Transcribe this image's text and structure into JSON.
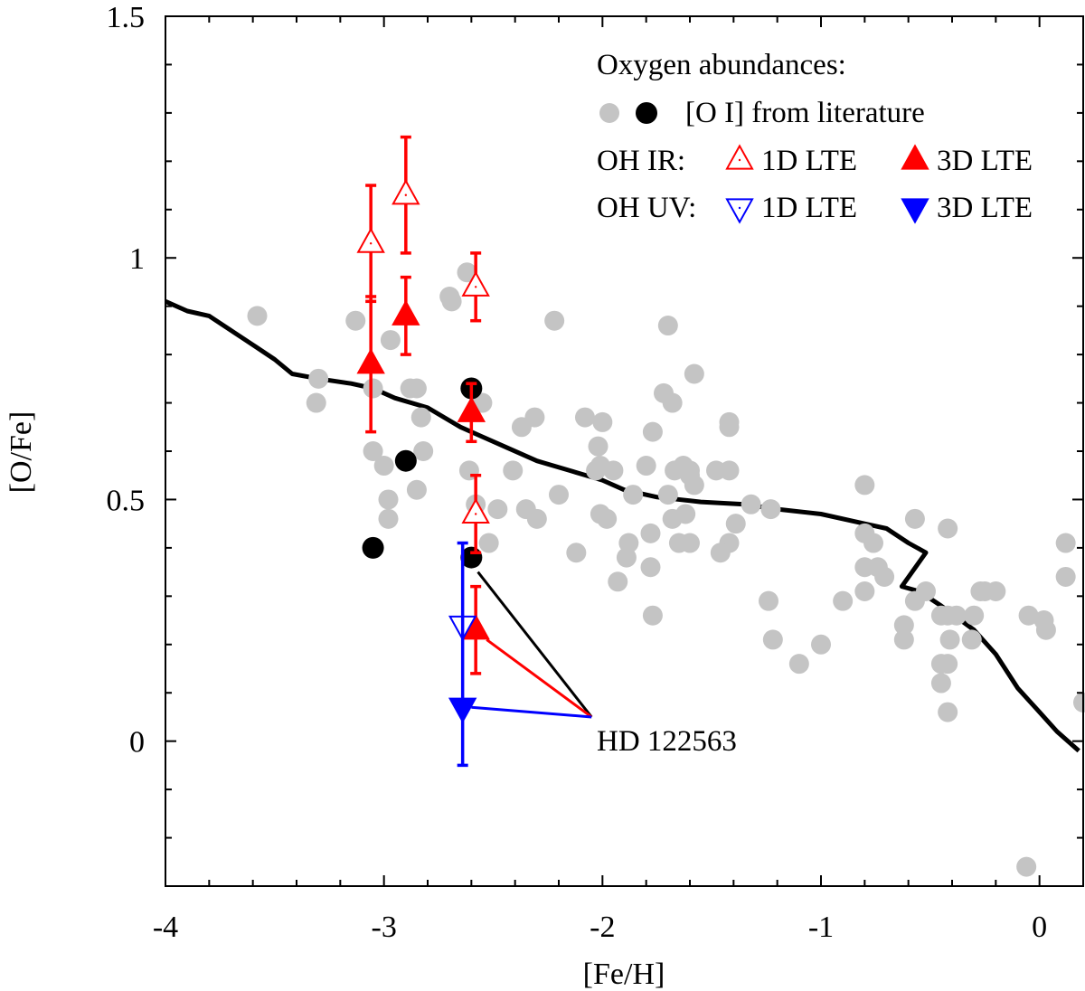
{
  "chart_data": {
    "type": "scatter",
    "xlabel": "[Fe/H]",
    "ylabel": "[O/Fe]",
    "xlim": [
      -4,
      0.2
    ],
    "ylim": [
      -0.3,
      1.5
    ],
    "xticks": [
      -4,
      -3,
      -2,
      -1,
      0
    ],
    "xtick_labels": [
      "-4",
      "-3",
      "-2",
      "-1",
      "0"
    ],
    "yticks": [
      0,
      0.5,
      1,
      1.5
    ],
    "ytick_labels": [
      "0",
      "0.5",
      "1",
      "1.5"
    ],
    "grid": false,
    "colors": {
      "literature_gray": "#c4c4c4",
      "literature_black": "#000000",
      "oh_ir": "#ff0000",
      "oh_uv": "#0000ff",
      "model": "#000000"
    },
    "legend": {
      "placement": "top-right",
      "title": "Oxygen abundances:",
      "oi_label": "[O I] from literature",
      "oh_ir_label": "OH IR:",
      "oh_uv_label": "OH UV:",
      "ir_1d_label": "1D LTE",
      "ir_3d_label": "3D LTE",
      "uv_1d_label": "1D LTE",
      "uv_3d_label": "3D LTE"
    },
    "annotation": {
      "text": "HD 122563",
      "point_at": [
        -2.05,
        0.05
      ]
    },
    "model_curve": [
      [
        -4.0,
        0.91
      ],
      [
        -3.9,
        0.89
      ],
      [
        -3.8,
        0.88
      ],
      [
        -3.7,
        0.85
      ],
      [
        -3.6,
        0.82
      ],
      [
        -3.5,
        0.79
      ],
      [
        -3.42,
        0.76
      ],
      [
        -3.3,
        0.75
      ],
      [
        -3.15,
        0.74
      ],
      [
        -3.05,
        0.73
      ],
      [
        -2.95,
        0.71
      ],
      [
        -2.8,
        0.69
      ],
      [
        -2.65,
        0.65
      ],
      [
        -2.55,
        0.63
      ],
      [
        -2.45,
        0.61
      ],
      [
        -2.3,
        0.58
      ],
      [
        -2.15,
        0.56
      ],
      [
        -2.0,
        0.54
      ],
      [
        -1.9,
        0.52
      ],
      [
        -1.75,
        0.505
      ],
      [
        -1.55,
        0.495
      ],
      [
        -1.35,
        0.49
      ],
      [
        -1.2,
        0.48
      ],
      [
        -1.0,
        0.47
      ],
      [
        -0.8,
        0.45
      ],
      [
        -0.7,
        0.44
      ],
      [
        -0.6,
        0.41
      ],
      [
        -0.52,
        0.39
      ],
      [
        -0.63,
        0.32
      ],
      [
        -0.55,
        0.31
      ],
      [
        -0.45,
        0.28
      ],
      [
        -0.3,
        0.23
      ],
      [
        -0.2,
        0.18
      ],
      [
        -0.1,
        0.11
      ],
      [
        0.0,
        0.06
      ],
      [
        0.08,
        0.02
      ],
      [
        0.18,
        -0.02
      ]
    ],
    "gray_points": [
      [
        -3.58,
        0.88
      ],
      [
        -3.3,
        0.75
      ],
      [
        -3.31,
        0.7
      ],
      [
        -3.13,
        0.87
      ],
      [
        -3.05,
        0.73
      ],
      [
        -3.05,
        0.6
      ],
      [
        -3.0,
        0.57
      ],
      [
        -2.98,
        0.5
      ],
      [
        -2.98,
        0.46
      ],
      [
        -2.97,
        0.83
      ],
      [
        -2.88,
        0.73
      ],
      [
        -2.85,
        0.73
      ],
      [
        -2.83,
        0.67
      ],
      [
        -2.82,
        0.6
      ],
      [
        -2.85,
        0.52
      ],
      [
        -2.7,
        0.92
      ],
      [
        -2.69,
        0.91
      ],
      [
        -2.62,
        0.97
      ],
      [
        -2.61,
        0.56
      ],
      [
        -2.58,
        0.49
      ],
      [
        -2.55,
        0.7
      ],
      [
        -2.52,
        0.41
      ],
      [
        -2.48,
        0.48
      ],
      [
        -2.41,
        0.56
      ],
      [
        -2.37,
        0.65
      ],
      [
        -2.35,
        0.48
      ],
      [
        -2.31,
        0.67
      ],
      [
        -2.3,
        0.46
      ],
      [
        -2.22,
        0.87
      ],
      [
        -2.2,
        0.51
      ],
      [
        -2.12,
        0.39
      ],
      [
        -2.08,
        0.67
      ],
      [
        -2.03,
        0.56
      ],
      [
        -2.01,
        0.47
      ],
      [
        -2.02,
        0.61
      ],
      [
        -2.0,
        0.66
      ],
      [
        -2.01,
        0.57
      ],
      [
        -1.98,
        0.46
      ],
      [
        -1.95,
        0.56
      ],
      [
        -1.93,
        0.33
      ],
      [
        -1.88,
        0.41
      ],
      [
        -1.89,
        0.38
      ],
      [
        -1.86,
        0.51
      ],
      [
        -1.8,
        0.57
      ],
      [
        -1.78,
        0.43
      ],
      [
        -1.78,
        0.36
      ],
      [
        -1.77,
        0.26
      ],
      [
        -1.77,
        0.64
      ],
      [
        -1.72,
        0.72
      ],
      [
        -1.68,
        0.7
      ],
      [
        -1.7,
        0.86
      ],
      [
        -1.7,
        0.51
      ],
      [
        -1.68,
        0.46
      ],
      [
        -1.67,
        0.56
      ],
      [
        -1.65,
        0.41
      ],
      [
        -1.63,
        0.57
      ],
      [
        -1.62,
        0.47
      ],
      [
        -1.6,
        0.56
      ],
      [
        -1.6,
        0.55
      ],
      [
        -1.6,
        0.41
      ],
      [
        -1.58,
        0.53
      ],
      [
        -1.58,
        0.76
      ],
      [
        -1.48,
        0.56
      ],
      [
        -1.42,
        0.66
      ],
      [
        -1.42,
        0.56
      ],
      [
        -1.42,
        0.65
      ],
      [
        -1.42,
        0.41
      ],
      [
        -1.39,
        0.45
      ],
      [
        -1.46,
        0.39
      ],
      [
        -1.32,
        0.49
      ],
      [
        -1.23,
        0.48
      ],
      [
        -1.24,
        0.29
      ],
      [
        -1.22,
        0.21
      ],
      [
        -1.1,
        0.16
      ],
      [
        -1.0,
        0.2
      ],
      [
        -0.9,
        0.29
      ],
      [
        -0.8,
        0.53
      ],
      [
        -0.8,
        0.43
      ],
      [
        -0.8,
        0.36
      ],
      [
        -0.8,
        0.31
      ],
      [
        -0.76,
        0.41
      ],
      [
        -0.74,
        0.36
      ],
      [
        -0.71,
        0.34
      ],
      [
        -0.62,
        0.24
      ],
      [
        -0.62,
        0.21
      ],
      [
        -0.57,
        0.46
      ],
      [
        -0.57,
        0.29
      ],
      [
        -0.52,
        0.31
      ],
      [
        -0.42,
        0.44
      ],
      [
        -0.45,
        0.26
      ],
      [
        -0.42,
        0.26
      ],
      [
        -0.41,
        0.21
      ],
      [
        -0.42,
        0.06
      ],
      [
        -0.45,
        0.16
      ],
      [
        -0.42,
        0.16
      ],
      [
        -0.45,
        0.12
      ],
      [
        -0.38,
        0.26
      ],
      [
        -0.31,
        0.21
      ],
      [
        -0.3,
        0.26
      ],
      [
        -0.27,
        0.31
      ],
      [
        -0.25,
        0.31
      ],
      [
        -0.2,
        0.31
      ],
      [
        -0.05,
        0.26
      ],
      [
        0.02,
        0.25
      ],
      [
        0.03,
        0.23
      ],
      [
        0.12,
        0.41
      ],
      [
        0.12,
        0.34
      ],
      [
        0.2,
        0.08
      ],
      [
        -0.06,
        -0.26
      ]
    ],
    "black_points": [
      [
        -3.05,
        0.4
      ],
      [
        -2.9,
        0.58
      ],
      [
        -2.6,
        0.73
      ],
      [
        -2.6,
        0.38
      ]
    ],
    "series": [
      {
        "name": "OH IR 1D LTE",
        "marker": "triangle-up-open",
        "color": "#ff0000",
        "points": [
          {
            "x": -3.06,
            "y": 1.03,
            "err": 0.12
          },
          {
            "x": -2.9,
            "y": 1.13,
            "err": 0.12
          },
          {
            "x": -2.58,
            "y": 0.94,
            "err": 0.07
          },
          {
            "x": -2.58,
            "y": 0.47,
            "err": 0.08
          }
        ]
      },
      {
        "name": "OH IR 3D LTE",
        "marker": "triangle-up-filled",
        "color": "#ff0000",
        "points": [
          {
            "x": -3.06,
            "y": 0.78,
            "err": 0.14
          },
          {
            "x": -2.9,
            "y": 0.88,
            "err": 0.08
          },
          {
            "x": -2.6,
            "y": 0.68,
            "err": 0.06
          },
          {
            "x": -2.58,
            "y": 0.23,
            "err": 0.09
          }
        ]
      },
      {
        "name": "OH UV 1D LTE",
        "marker": "triangle-down-open",
        "color": "#0000ff",
        "points": [
          {
            "x": -2.64,
            "y": 0.24,
            "err": 0.0
          }
        ]
      },
      {
        "name": "OH UV 3D LTE",
        "marker": "triangle-down-filled",
        "color": "#0000ff",
        "points": [
          {
            "x": -2.64,
            "y": 0.07,
            "err": 0.0,
            "err_low": 0.12,
            "err_high": 0.34
          }
        ]
      }
    ]
  }
}
